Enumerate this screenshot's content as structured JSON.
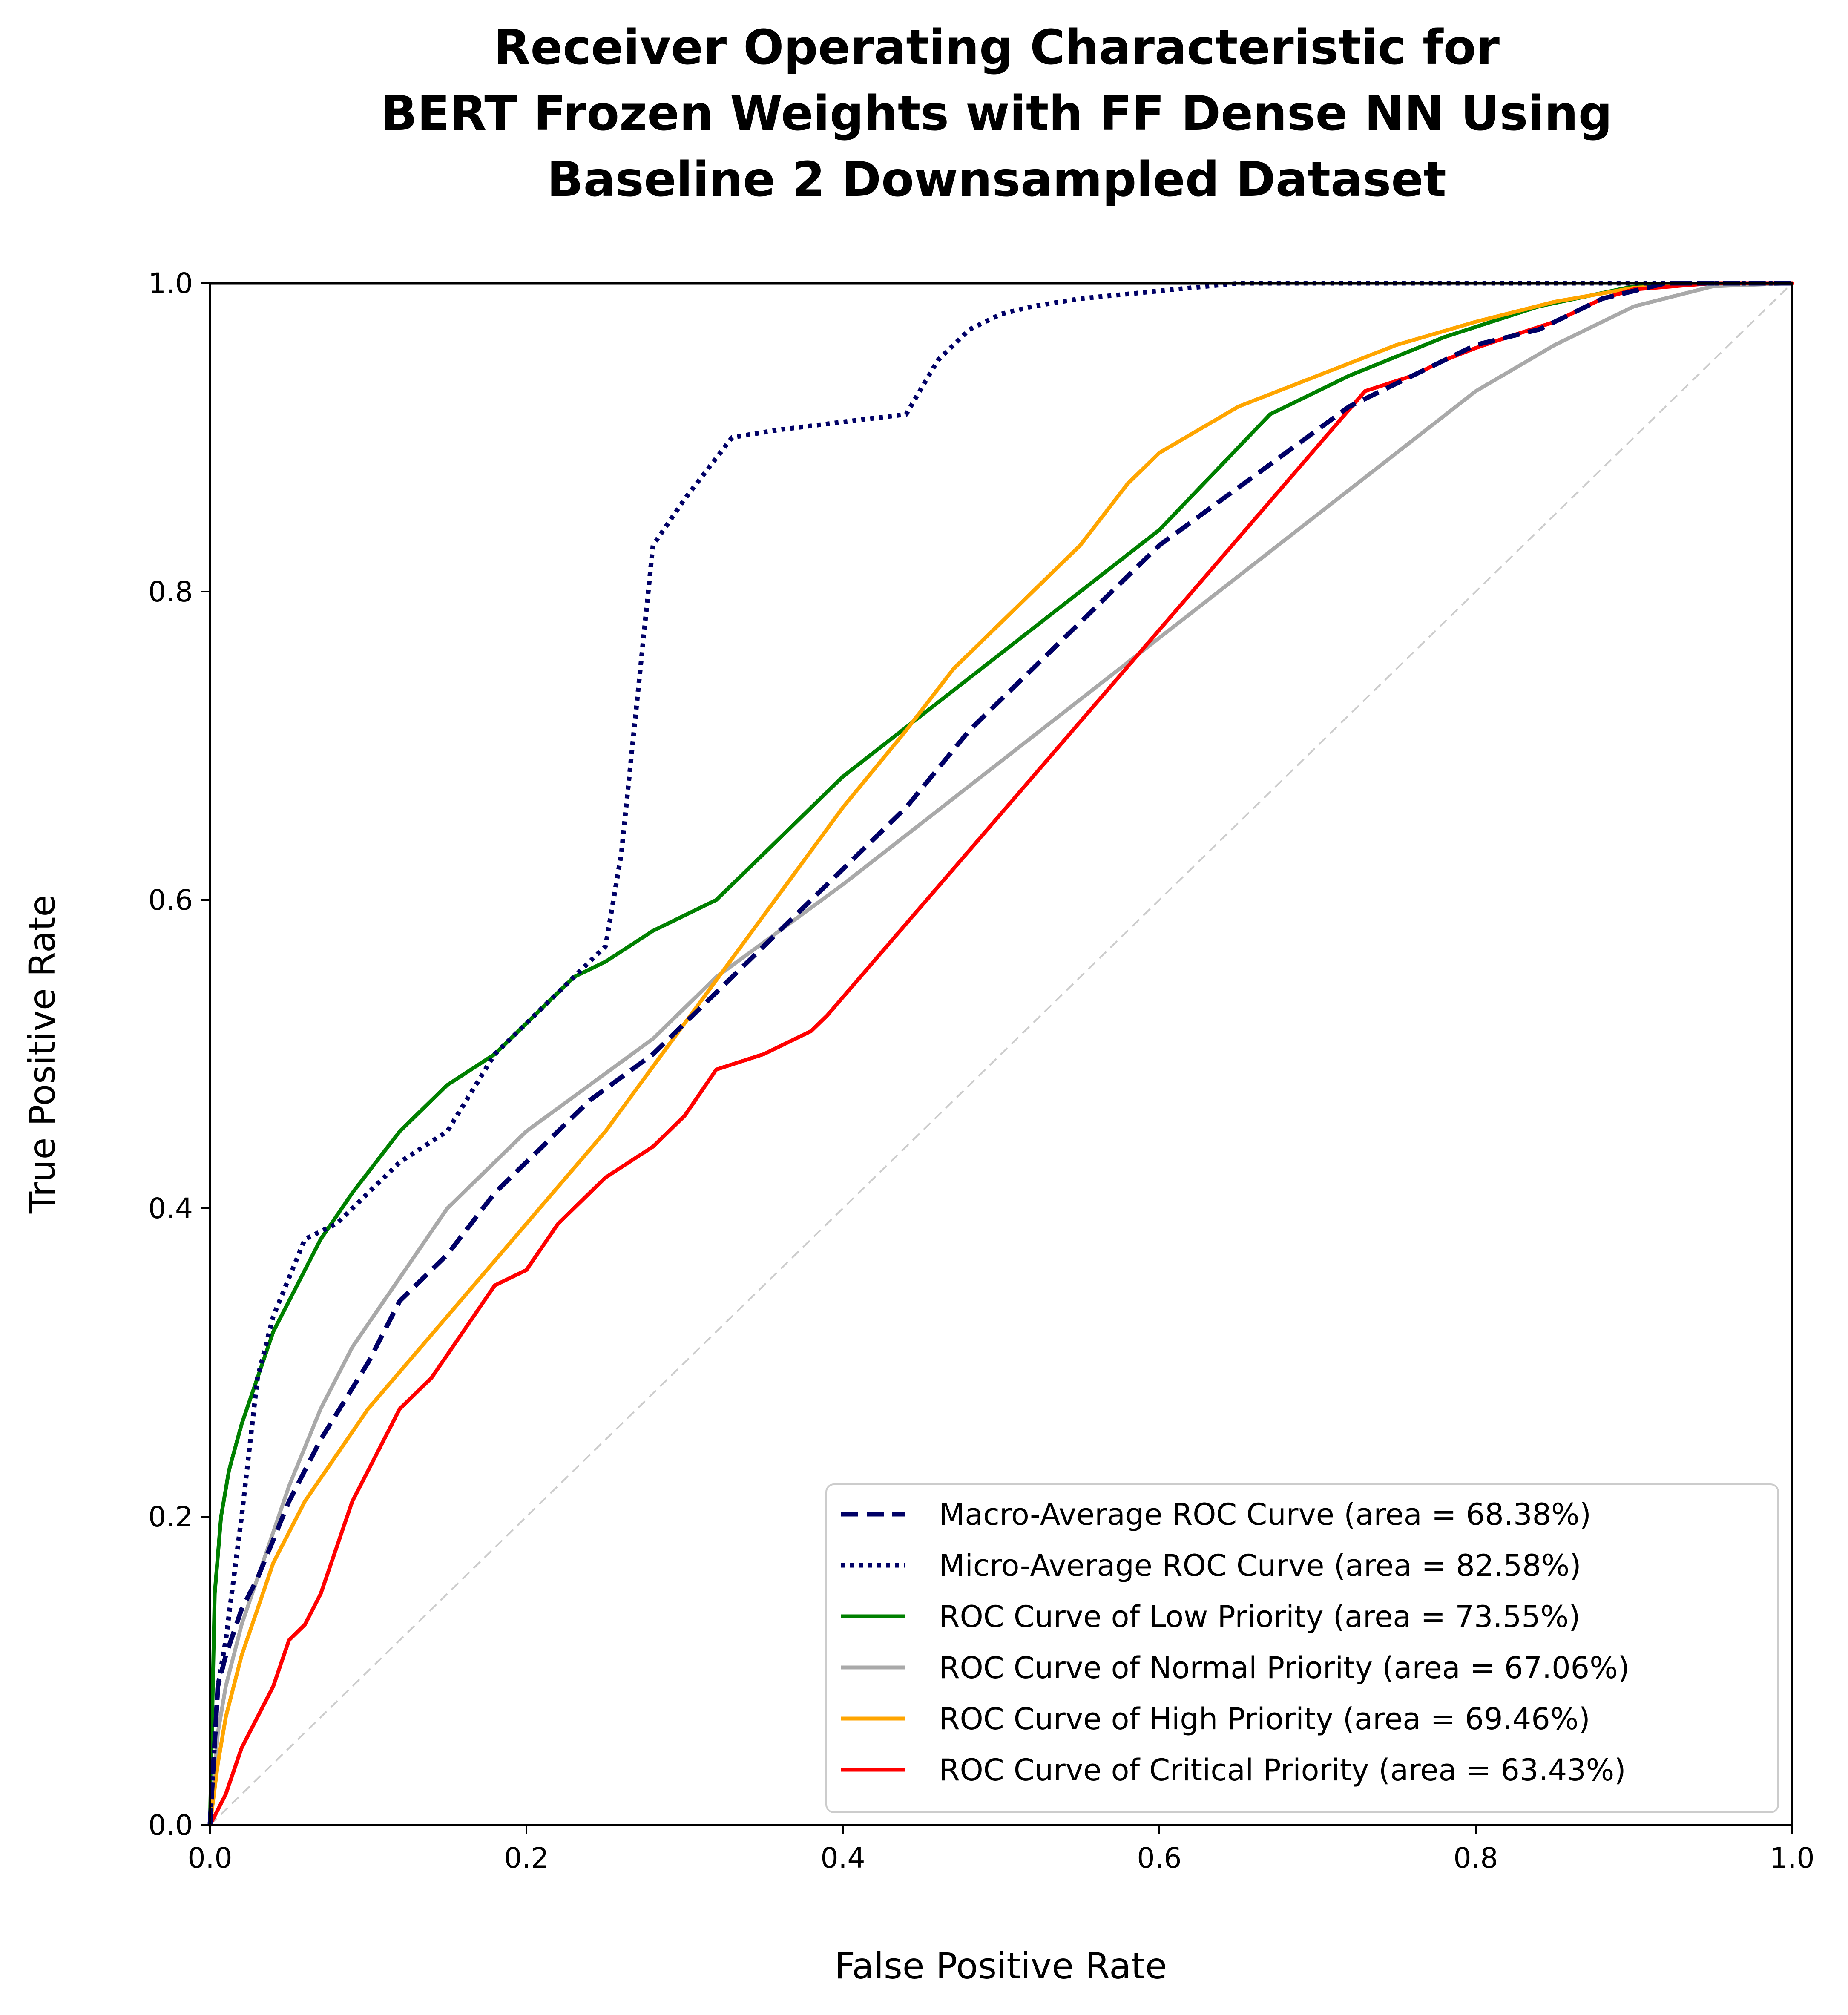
{
  "chart_data": {
    "type": "line",
    "title": "Receiver Operating Characteristic for BERT Frozen Weights with FF Dense NN Using Baseline 2 Downsampled Dataset",
    "title_lines": [
      "Receiver Operating Characteristic for",
      "BERT Frozen Weights with FF Dense NN Using",
      "Baseline 2 Downsampled Dataset"
    ],
    "xlabel": "False Positive Rate",
    "ylabel": "True Positive Rate",
    "xlim": [
      0.0,
      1.0
    ],
    "ylim": [
      0.0,
      1.0
    ],
    "x_ticks": [
      "0.0",
      "0.2",
      "0.4",
      "0.6",
      "0.8",
      "1.0"
    ],
    "y_ticks": [
      "0.0",
      "0.2",
      "0.4",
      "0.6",
      "0.8",
      "1.0"
    ],
    "grid": false,
    "legend_position": "lower-right",
    "series": [
      {
        "name": "Macro-Average ROC Curve (area = 68.38%)",
        "color": "#000066",
        "style": "dashed",
        "x": [
          0.0,
          0.005,
          0.01,
          0.02,
          0.03,
          0.05,
          0.07,
          0.1,
          0.12,
          0.15,
          0.18,
          0.2,
          0.24,
          0.28,
          0.32,
          0.36,
          0.4,
          0.44,
          0.48,
          0.52,
          0.56,
          0.6,
          0.64,
          0.68,
          0.72,
          0.76,
          0.8,
          0.84,
          0.88,
          0.92,
          0.95,
          1.0
        ],
        "y": [
          0.0,
          0.09,
          0.11,
          0.14,
          0.16,
          0.21,
          0.25,
          0.3,
          0.34,
          0.37,
          0.41,
          0.43,
          0.47,
          0.5,
          0.54,
          0.58,
          0.62,
          0.66,
          0.71,
          0.75,
          0.79,
          0.83,
          0.86,
          0.89,
          0.92,
          0.94,
          0.96,
          0.97,
          0.99,
          1.0,
          1.0,
          1.0
        ]
      },
      {
        "name": "Micro-Average ROC Curve (area = 82.58%)",
        "color": "#000066",
        "style": "dotted",
        "x": [
          0.0,
          0.005,
          0.01,
          0.02,
          0.03,
          0.04,
          0.06,
          0.08,
          0.1,
          0.12,
          0.15,
          0.18,
          0.2,
          0.22,
          0.25,
          0.26,
          0.27,
          0.28,
          0.3,
          0.33,
          0.36,
          0.44,
          0.46,
          0.48,
          0.5,
          0.52,
          0.55,
          0.6,
          0.65,
          0.7,
          0.8,
          0.9,
          1.0
        ],
        "y": [
          0.0,
          0.09,
          0.12,
          0.2,
          0.29,
          0.33,
          0.38,
          0.39,
          0.41,
          0.43,
          0.45,
          0.5,
          0.52,
          0.54,
          0.57,
          0.63,
          0.73,
          0.83,
          0.86,
          0.9,
          0.905,
          0.915,
          0.95,
          0.97,
          0.98,
          0.985,
          0.99,
          0.995,
          1.0,
          1.0,
          1.0,
          1.0,
          1.0
        ]
      },
      {
        "name": "ROC Curve of Low Priority (area = 73.55%)",
        "color": "#008000",
        "style": "solid",
        "x": [
          0.0,
          0.003,
          0.007,
          0.012,
          0.02,
          0.03,
          0.04,
          0.05,
          0.07,
          0.09,
          0.12,
          0.15,
          0.18,
          0.2,
          0.23,
          0.25,
          0.28,
          0.3,
          0.32,
          0.36,
          0.4,
          0.45,
          0.5,
          0.55,
          0.6,
          0.67,
          0.72,
          0.78,
          0.84,
          0.9,
          0.95,
          1.0
        ],
        "y": [
          0.0,
          0.15,
          0.2,
          0.23,
          0.26,
          0.29,
          0.32,
          0.34,
          0.38,
          0.41,
          0.45,
          0.48,
          0.5,
          0.52,
          0.55,
          0.56,
          0.58,
          0.59,
          0.6,
          0.64,
          0.68,
          0.72,
          0.76,
          0.8,
          0.84,
          0.915,
          0.94,
          0.965,
          0.985,
          0.998,
          1.0,
          1.0
        ]
      },
      {
        "name": "ROC Curve of Normal Priority (area = 67.06%)",
        "color": "#a9a9a9",
        "style": "solid",
        "x": [
          0.0,
          0.005,
          0.01,
          0.02,
          0.03,
          0.04,
          0.05,
          0.07,
          0.09,
          0.11,
          0.13,
          0.15,
          0.17,
          0.2,
          0.24,
          0.28,
          0.32,
          0.36,
          0.4,
          0.45,
          0.5,
          0.55,
          0.6,
          0.65,
          0.7,
          0.75,
          0.8,
          0.85,
          0.9,
          0.95,
          1.0
        ],
        "y": [
          0.0,
          0.06,
          0.09,
          0.13,
          0.16,
          0.19,
          0.22,
          0.27,
          0.31,
          0.34,
          0.37,
          0.4,
          0.42,
          0.45,
          0.48,
          0.51,
          0.55,
          0.58,
          0.61,
          0.65,
          0.69,
          0.73,
          0.77,
          0.81,
          0.85,
          0.89,
          0.93,
          0.96,
          0.985,
          0.998,
          1.0
        ]
      },
      {
        "name": "ROC Curve of High Priority (area = 69.46%)",
        "color": "#ffa500",
        "style": "solid",
        "x": [
          0.0,
          0.005,
          0.01,
          0.02,
          0.03,
          0.04,
          0.05,
          0.06,
          0.08,
          0.1,
          0.15,
          0.2,
          0.25,
          0.3,
          0.35,
          0.4,
          0.44,
          0.47,
          0.5,
          0.55,
          0.58,
          0.6,
          0.65,
          0.7,
          0.75,
          0.8,
          0.85,
          0.9,
          0.95,
          1.0
        ],
        "y": [
          0.0,
          0.04,
          0.07,
          0.11,
          0.14,
          0.17,
          0.19,
          0.21,
          0.24,
          0.27,
          0.33,
          0.39,
          0.45,
          0.52,
          0.59,
          0.66,
          0.71,
          0.75,
          0.78,
          0.83,
          0.87,
          0.89,
          0.92,
          0.94,
          0.96,
          0.975,
          0.988,
          0.997,
          1.0,
          1.0
        ]
      },
      {
        "name": "ROC Curve of Critical Priority (area = 63.43%)",
        "color": "#ff0000",
        "style": "solid",
        "x": [
          0.0,
          0.01,
          0.02,
          0.03,
          0.04,
          0.05,
          0.06,
          0.07,
          0.08,
          0.09,
          0.1,
          0.12,
          0.14,
          0.16,
          0.18,
          0.2,
          0.22,
          0.24,
          0.25,
          0.28,
          0.3,
          0.32,
          0.35,
          0.38,
          0.39,
          0.73,
          0.76,
          0.78,
          0.8,
          0.82,
          0.85,
          0.87,
          0.88,
          0.9,
          0.95,
          1.0
        ],
        "y": [
          0.0,
          0.02,
          0.05,
          0.07,
          0.09,
          0.12,
          0.13,
          0.15,
          0.18,
          0.21,
          0.23,
          0.27,
          0.29,
          0.32,
          0.35,
          0.36,
          0.39,
          0.41,
          0.42,
          0.44,
          0.46,
          0.49,
          0.5,
          0.515,
          0.525,
          0.93,
          0.94,
          0.95,
          0.958,
          0.965,
          0.975,
          0.985,
          0.99,
          0.996,
          1.0,
          1.0
        ]
      },
      {
        "name": "",
        "color": "#cccccc",
        "style": "diagonal-dashed",
        "x": [
          0.0,
          1.0
        ],
        "y": [
          0.0,
          1.0
        ]
      }
    ]
  }
}
